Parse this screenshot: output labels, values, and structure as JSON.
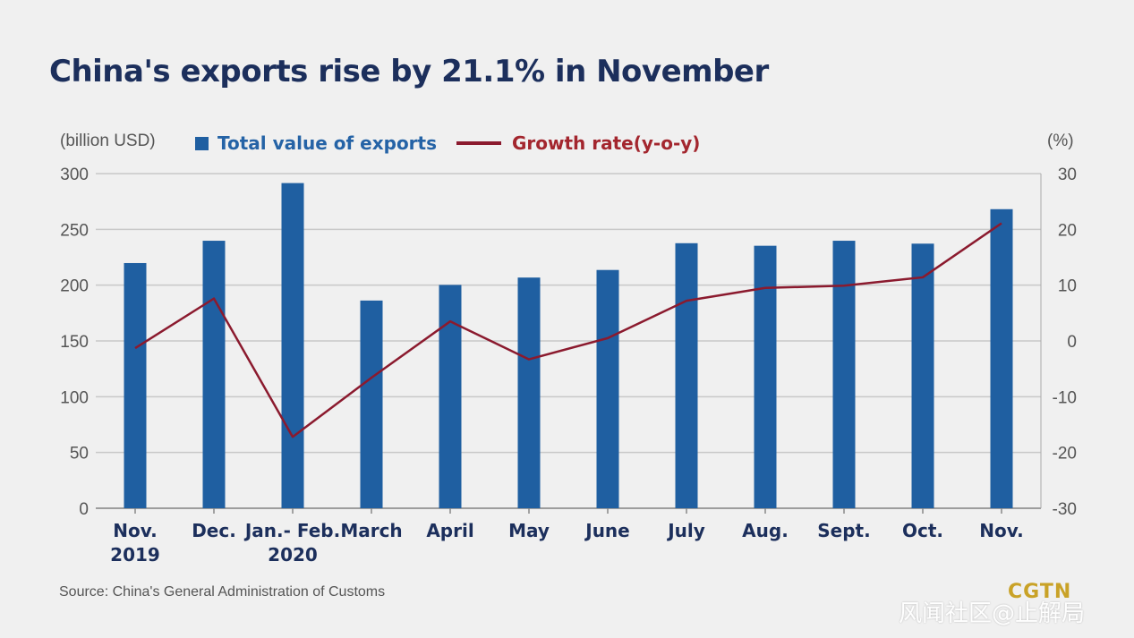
{
  "chart_title": "China's exports rise by 21.1% in November",
  "source": "Source: China's General Administration of Customs",
  "logo": "CGTN",
  "watermark": "风闻社区@止解局",
  "colors": {
    "bar": "#1f5fa1",
    "line": "#8b1a2e",
    "title": "#1c2f5c",
    "legend_bar_text": "#2563a6",
    "legend_line_text": "#a3262e",
    "grid": "#c8c8c8"
  },
  "chart_data": {
    "type": "bar",
    "title": "China's exports rise by 21.1% in November",
    "categories": [
      "Nov.\n2019",
      "Dec.",
      "Jan.- Feb.\n2020",
      "March",
      "April",
      "May",
      "June",
      "July",
      "Aug.",
      "Sept.",
      "Oct.",
      "Nov."
    ],
    "ylabel_left": "(billion USD)",
    "ylabel_right": "(%)",
    "ylim_left": [
      0,
      300
    ],
    "ylim_right": [
      -30,
      30
    ],
    "yticks_left": [
      0,
      50,
      100,
      150,
      200,
      250,
      300
    ],
    "yticks_right": [
      -30,
      -20,
      -10,
      0,
      10,
      20,
      30
    ],
    "grid": true,
    "legend_position": "top",
    "series": [
      {
        "name": "Total value of exports",
        "type": "bar",
        "axis": "left",
        "values": [
          219.8,
          239.8,
          291.5,
          186.2,
          200.2,
          206.8,
          213.6,
          237.6,
          235.3,
          239.8,
          237.2,
          268.1
        ]
      },
      {
        "name": "Growth rate(y-o-y)",
        "type": "line",
        "axis": "right",
        "values": [
          -1.3,
          7.6,
          -17.2,
          -6.6,
          3.5,
          -3.3,
          0.5,
          7.2,
          9.5,
          9.9,
          11.4,
          21.1
        ]
      }
    ]
  }
}
